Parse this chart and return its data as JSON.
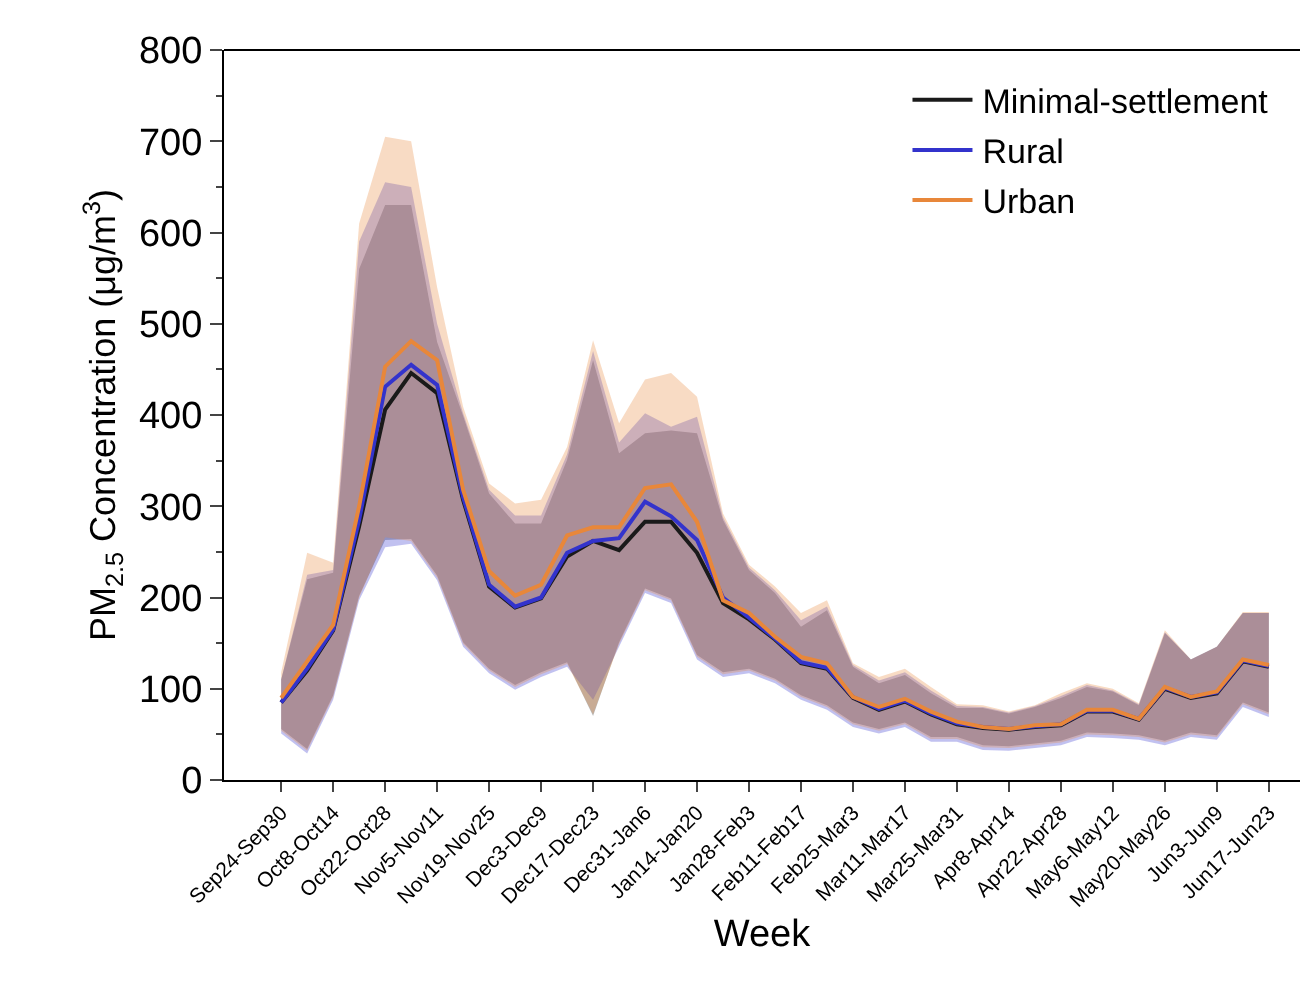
{
  "chart_data": {
    "type": "line",
    "xlabel": "Week",
    "ylabel": "PM$_{2.5}$ Concentration (μg/m$^{3}$)",
    "categories": [
      "Sep24-Sep30",
      null,
      "Oct8-Oct14",
      null,
      "Oct22-Oct28",
      null,
      "Nov5-Nov11",
      null,
      "Nov19-Nov25",
      null,
      "Dec3-Dec9",
      null,
      "Dec17-Dec23",
      null,
      "Dec31-Jan6",
      null,
      "Jan14-Jan20",
      null,
      "Jan28-Feb3",
      null,
      "Feb11-Feb17",
      null,
      "Feb25-Mar3",
      null,
      "Mar11-Mar17",
      null,
      "Mar25-Mar31",
      null,
      "Apr8-Apr14",
      null,
      "Apr22-Apr28",
      null,
      "May6-May12",
      null,
      "May20-May26",
      null,
      "Jun3-Jun9",
      null,
      "Jun17-Jun23"
    ],
    "ylim": [
      0,
      800
    ],
    "yticks": [
      0,
      100,
      200,
      300,
      400,
      500,
      600,
      700,
      800
    ],
    "grid": false,
    "legend": "top right",
    "line_style": "solid",
    "marker": "none",
    "series": [
      {
        "name": "Minimal-settlement",
        "color": "#1a1a1a",
        "values": [
          85,
          120,
          164,
          278,
          406,
          446,
          424,
          307,
          212,
          189,
          199,
          245,
          262,
          252,
          283,
          283,
          249,
          194,
          176,
          154,
          128,
          122,
          90,
          77,
          86,
          72,
          61,
          57,
          55,
          58,
          60,
          75,
          75,
          66,
          100,
          90,
          95,
          130,
          124
        ],
        "lower": [
          56,
          34,
          93,
          202,
          263,
          264,
          224,
          151,
          122,
          104,
          118,
          129,
          70,
          151,
          210,
          199,
          137,
          118,
          122,
          111,
          93,
          82,
          63,
          56,
          63,
          47,
          47,
          38,
          37,
          40,
          43,
          52,
          51,
          49,
          43,
          52,
          49,
          85,
          74
        ],
        "upper": [
          110,
          220,
          227,
          560,
          630,
          630,
          480,
          399,
          314,
          281,
          281,
          351,
          460,
          358,
          380,
          383,
          380,
          285,
          230,
          205,
          168,
          186,
          124,
          106,
          115,
          95,
          79,
          79,
          73,
          80,
          90,
          102,
          97,
          82,
          161,
          132,
          146,
          183,
          183
        ]
      },
      {
        "name": "Rural",
        "color": "#3333cc",
        "values": [
          85,
          122,
          165,
          285,
          431,
          455,
          433,
          310,
          214,
          190,
          200,
          249,
          262,
          265,
          305,
          289,
          263,
          200,
          178,
          155,
          129,
          123,
          91,
          78,
          87,
          73,
          62,
          58,
          56,
          59,
          61,
          76,
          76,
          67,
          101,
          91,
          96,
          131,
          125
        ],
        "lower": [
          51,
          29,
          88,
          197,
          255,
          259,
          219,
          146,
          117,
          99,
          113,
          124,
          88,
          146,
          205,
          194,
          132,
          113,
          117,
          106,
          88,
          77,
          58,
          51,
          58,
          42,
          42,
          33,
          32,
          35,
          38,
          47,
          46,
          44,
          38,
          47,
          44,
          80,
          69
        ],
        "upper": [
          110,
          225,
          230,
          590,
          655,
          650,
          500,
          402,
          318,
          290,
          290,
          357,
          470,
          370,
          402,
          387,
          398,
          288,
          233,
          208,
          175,
          190,
          126,
          109,
          118,
          98,
          81,
          80,
          74,
          81,
          92,
          104,
          98,
          83,
          162,
          132,
          146,
          183,
          183
        ]
      },
      {
        "name": "Urban",
        "color": "#e8873a",
        "values": [
          90,
          130,
          170,
          300,
          453,
          481,
          460,
          318,
          229,
          202,
          214,
          268,
          277,
          277,
          320,
          324,
          283,
          197,
          183,
          157,
          135,
          128,
          91,
          80,
          89,
          75,
          64,
          58,
          56,
          60,
          61,
          77,
          77,
          67,
          102,
          91,
          97,
          132,
          126
        ],
        "lower": [
          54,
          32,
          91,
          200,
          266,
          262,
          222,
          149,
          120,
          102,
          116,
          127,
          72,
          149,
          208,
          197,
          135,
          116,
          120,
          109,
          91,
          80,
          61,
          54,
          61,
          45,
          45,
          36,
          35,
          38,
          41,
          50,
          49,
          47,
          41,
          50,
          47,
          83,
          72
        ],
        "upper": [
          118,
          249,
          238,
          610,
          705,
          700,
          540,
          409,
          325,
          303,
          307,
          365,
          482,
          391,
          439,
          446,
          420,
          292,
          236,
          212,
          183,
          197,
          128,
          113,
          122,
          102,
          83,
          82,
          75,
          82,
          95,
          106,
          100,
          84,
          164,
          132,
          146,
          184,
          184
        ]
      }
    ]
  }
}
